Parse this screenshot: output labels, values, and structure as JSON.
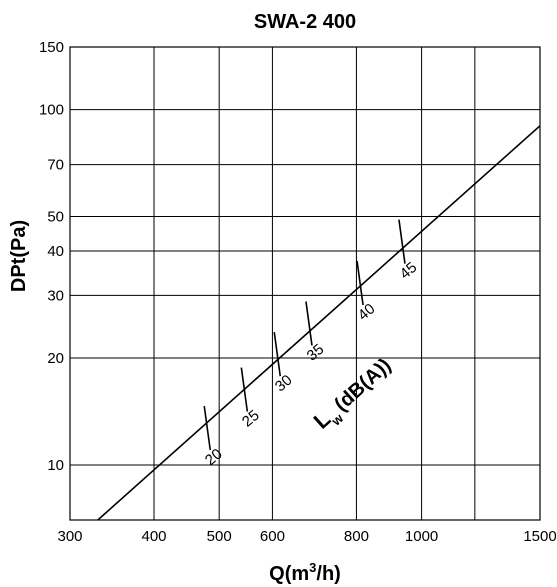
{
  "chart_data": {
    "type": "line",
    "title": "SWA-2 400",
    "xlabel": "Q(m",
    "xlabel_sup": "3",
    "xlabel_end": "/h)",
    "ylabel": "DPt(Pa)",
    "x_scale": "log",
    "y_scale": "log",
    "xlim": [
      300,
      1500
    ],
    "ylim": [
      7,
      150
    ],
    "grid": true,
    "x_ticks": [
      300,
      400,
      500,
      600,
      800,
      1000,
      1500
    ],
    "x_tick_labels": [
      "300",
      "400",
      "500",
      "600",
      "800",
      "1000",
      "1500"
    ],
    "x_grid_extra": [
      1200
    ],
    "y_ticks": [
      10,
      20,
      30,
      40,
      50,
      70,
      100,
      150
    ],
    "y_tick_labels": [
      "10",
      "20",
      "30",
      "40",
      "50",
      "70",
      "100",
      "150"
    ],
    "series": [
      {
        "x": [
          330,
          1500
        ],
        "y": [
          7,
          90
        ]
      }
    ],
    "lw_label": "L",
    "lw_sub": "w",
    "lw_unit": "(dB(A))",
    "sound_marks": [
      {
        "label": "20",
        "x": 480,
        "y": 12.7
      },
      {
        "label": "25",
        "x": 545,
        "y": 16.3
      },
      {
        "label": "30",
        "x": 610,
        "y": 20.5
      },
      {
        "label": "35",
        "x": 680,
        "y": 25.0
      },
      {
        "label": "40",
        "x": 810,
        "y": 32.5
      },
      {
        "label": "45",
        "x": 935,
        "y": 42.5
      }
    ]
  }
}
